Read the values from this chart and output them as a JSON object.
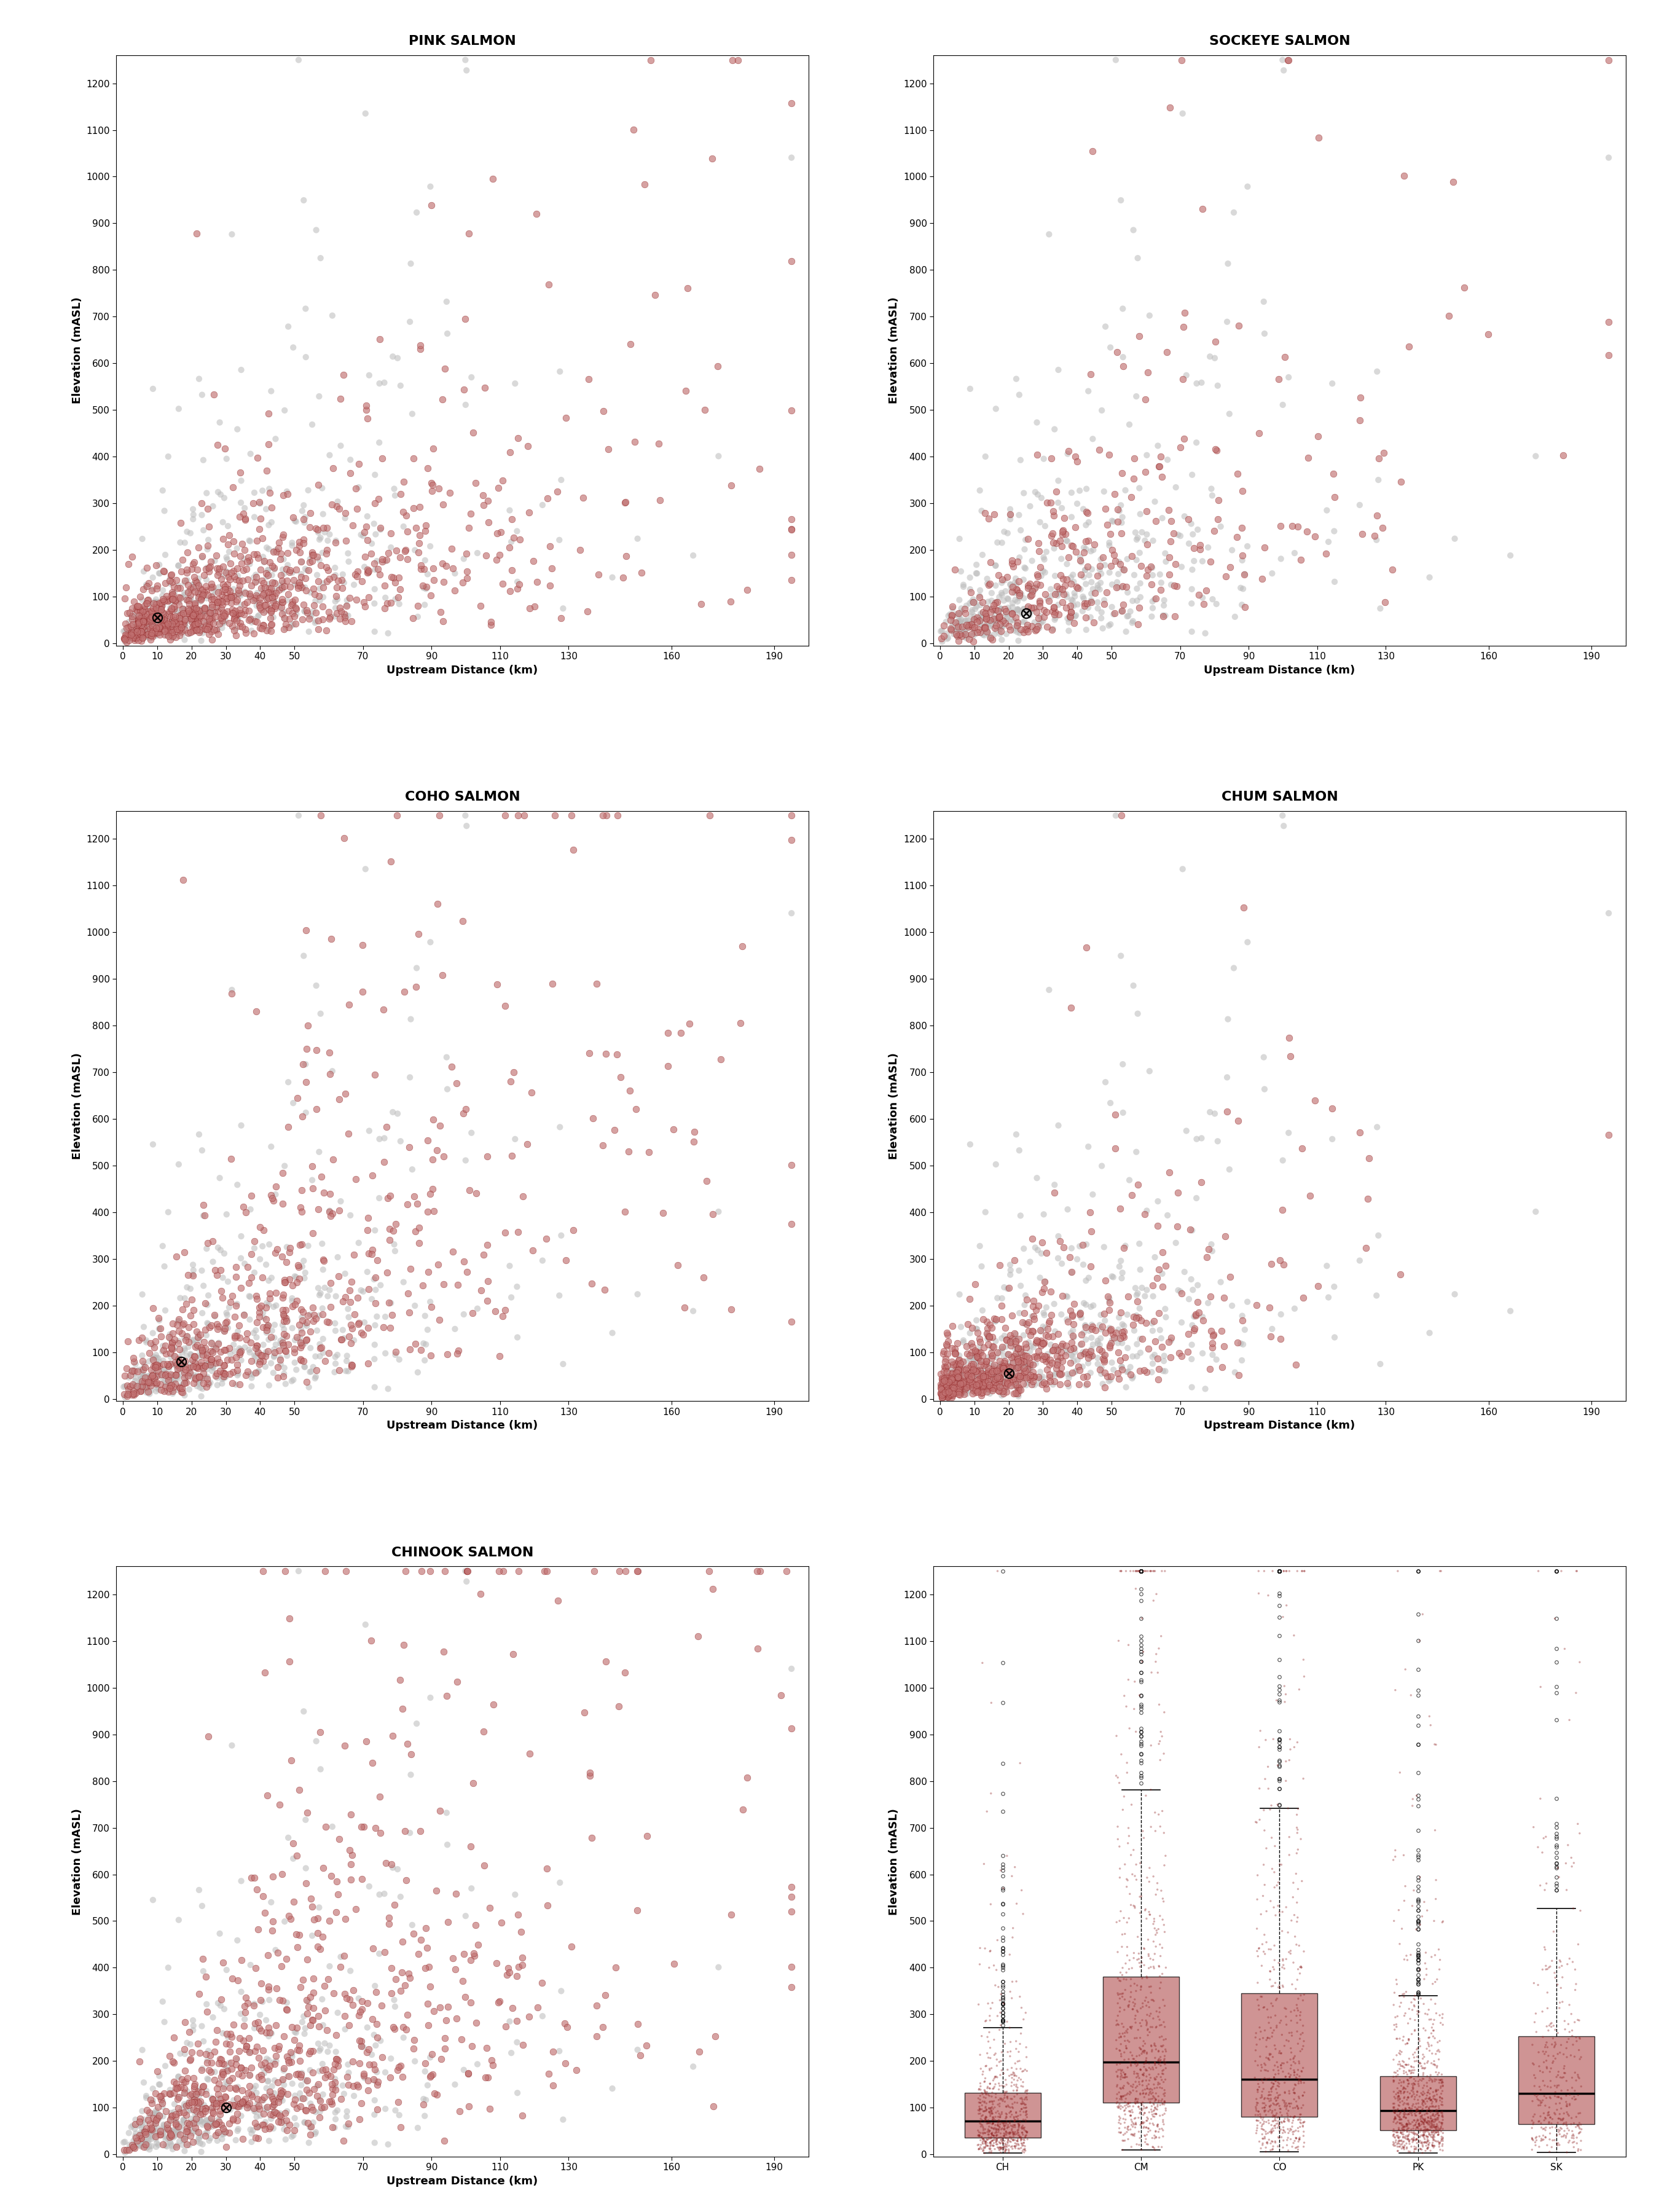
{
  "titles": [
    "PINK SALMON",
    "SOCKEYE SALMON",
    "COHO SALMON",
    "CHUM SALMON",
    "CHINOOK SALMON"
  ],
  "xlabel": "Upstream Distance (km)",
  "ylabel": "Elevation (mASL)",
  "xlim_scatter": [
    -2,
    200
  ],
  "ylim": [
    -5,
    1260
  ],
  "xticks": [
    0,
    10,
    20,
    30,
    40,
    50,
    70,
    90,
    110,
    130,
    160,
    190
  ],
  "yticks": [
    0,
    100,
    200,
    300,
    400,
    500,
    600,
    700,
    800,
    900,
    1000,
    1100,
    1200
  ],
  "dark_red": "#8B1A1A",
  "light_red": "#C07070",
  "med_red": "#A05050",
  "gray": "#BBBBBB",
  "box_labels": [
    "CH",
    "CM",
    "CO",
    "PK",
    "SK"
  ],
  "title_fontsize": 16,
  "axis_label_fontsize": 13,
  "tick_fontsize": 11,
  "scatter_point_size": 60,
  "gray_point_size": 55
}
